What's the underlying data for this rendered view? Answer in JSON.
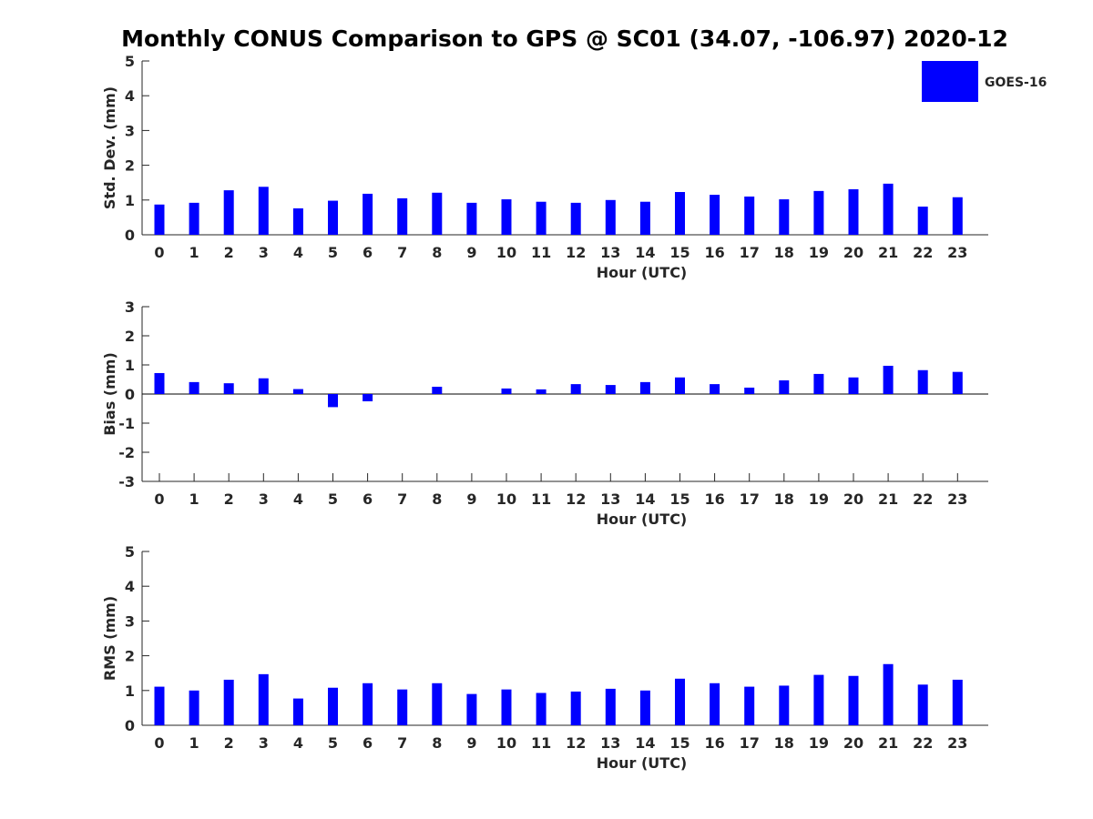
{
  "title": "Monthly CONUS Comparison to GPS @ SC01 (34.07, -106.97) 2020-12",
  "legend": {
    "label": "GOES-16",
    "color": "#0000ff",
    "placement": "top-right"
  },
  "chart_data": [
    {
      "type": "bar",
      "ylabel": "Std. Dev. (mm)",
      "xlabel": "Hour (UTC)",
      "categories": [
        "0",
        "1",
        "2",
        "3",
        "4",
        "5",
        "6",
        "7",
        "8",
        "9",
        "10",
        "11",
        "12",
        "13",
        "14",
        "15",
        "16",
        "17",
        "18",
        "19",
        "20",
        "21",
        "22",
        "23"
      ],
      "ylim": [
        0,
        5
      ],
      "yticks": [
        "0",
        "1",
        "2",
        "3",
        "4",
        "5"
      ],
      "series": [
        {
          "name": "GOES-16",
          "color": "#0000ff",
          "values": [
            0.87,
            0.92,
            1.28,
            1.38,
            0.76,
            0.98,
            1.18,
            1.05,
            1.21,
            0.92,
            1.02,
            0.95,
            0.92,
            1.0,
            0.95,
            1.23,
            1.15,
            1.1,
            1.02,
            1.26,
            1.31,
            1.47,
            0.81,
            1.08
          ]
        }
      ],
      "grid": false
    },
    {
      "type": "bar",
      "ylabel": "Bias (mm)",
      "xlabel": "Hour (UTC)",
      "categories": [
        "0",
        "1",
        "2",
        "3",
        "4",
        "5",
        "6",
        "7",
        "8",
        "9",
        "10",
        "11",
        "12",
        "13",
        "14",
        "15",
        "16",
        "17",
        "18",
        "19",
        "20",
        "21",
        "22",
        "23"
      ],
      "ylim": [
        -3,
        3
      ],
      "yticks": [
        "-3",
        "-2",
        "-1",
        "0",
        "1",
        "2",
        "3"
      ],
      "zero_line": true,
      "series": [
        {
          "name": "GOES-16",
          "color": "#0000ff",
          "values": [
            0.72,
            0.41,
            0.37,
            0.54,
            0.17,
            -0.45,
            -0.25,
            0.0,
            0.25,
            0.0,
            0.19,
            0.16,
            0.34,
            0.31,
            0.41,
            0.57,
            0.34,
            0.22,
            0.47,
            0.69,
            0.57,
            0.97,
            0.82,
            0.76
          ]
        }
      ],
      "grid": false
    },
    {
      "type": "bar",
      "ylabel": "RMS (mm)",
      "xlabel": "Hour (UTC)",
      "categories": [
        "0",
        "1",
        "2",
        "3",
        "4",
        "5",
        "6",
        "7",
        "8",
        "9",
        "10",
        "11",
        "12",
        "13",
        "14",
        "15",
        "16",
        "17",
        "18",
        "19",
        "20",
        "21",
        "22",
        "23"
      ],
      "ylim": [
        0,
        5
      ],
      "yticks": [
        "0",
        "1",
        "2",
        "3",
        "4",
        "5"
      ],
      "series": [
        {
          "name": "GOES-16",
          "color": "#0000ff",
          "values": [
            1.11,
            1.0,
            1.31,
            1.47,
            0.77,
            1.08,
            1.21,
            1.03,
            1.21,
            0.9,
            1.03,
            0.93,
            0.97,
            1.05,
            1.0,
            1.34,
            1.21,
            1.11,
            1.14,
            1.45,
            1.42,
            1.76,
            1.17,
            1.31
          ]
        }
      ],
      "grid": false
    }
  ]
}
